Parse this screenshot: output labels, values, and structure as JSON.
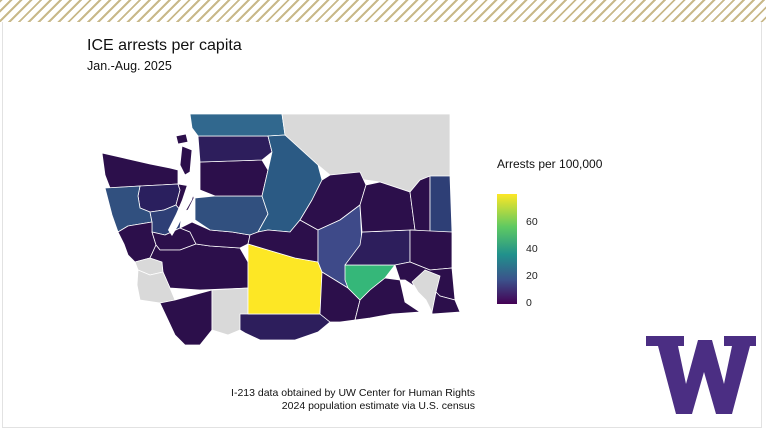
{
  "title": "ICE arrests per capita",
  "subtitle": "Jan.-Aug. 2025",
  "legend": {
    "title": "Arrests per 100,000",
    "ticks": [
      "0",
      "20",
      "40",
      "60"
    ],
    "colors": [
      "#440154",
      "#3b528b",
      "#21918c",
      "#5ec962",
      "#fde725"
    ],
    "no_data_color": "#d9d9d9"
  },
  "highlight_colors": {
    "highest": "#fde725",
    "high": "#35b779",
    "mid_teal": "#31688e",
    "mid_blue": "#3e4a89",
    "low": "#2d1e5c",
    "lowest": "#2c0f4b"
  },
  "source": {
    "line1": "I-213 data obtained by UW Center for Human Rights",
    "line2": "2024 population estimate via U.S. census"
  },
  "brand_color": "#4b2e83",
  "logo_icon": "uw-w-logo"
}
